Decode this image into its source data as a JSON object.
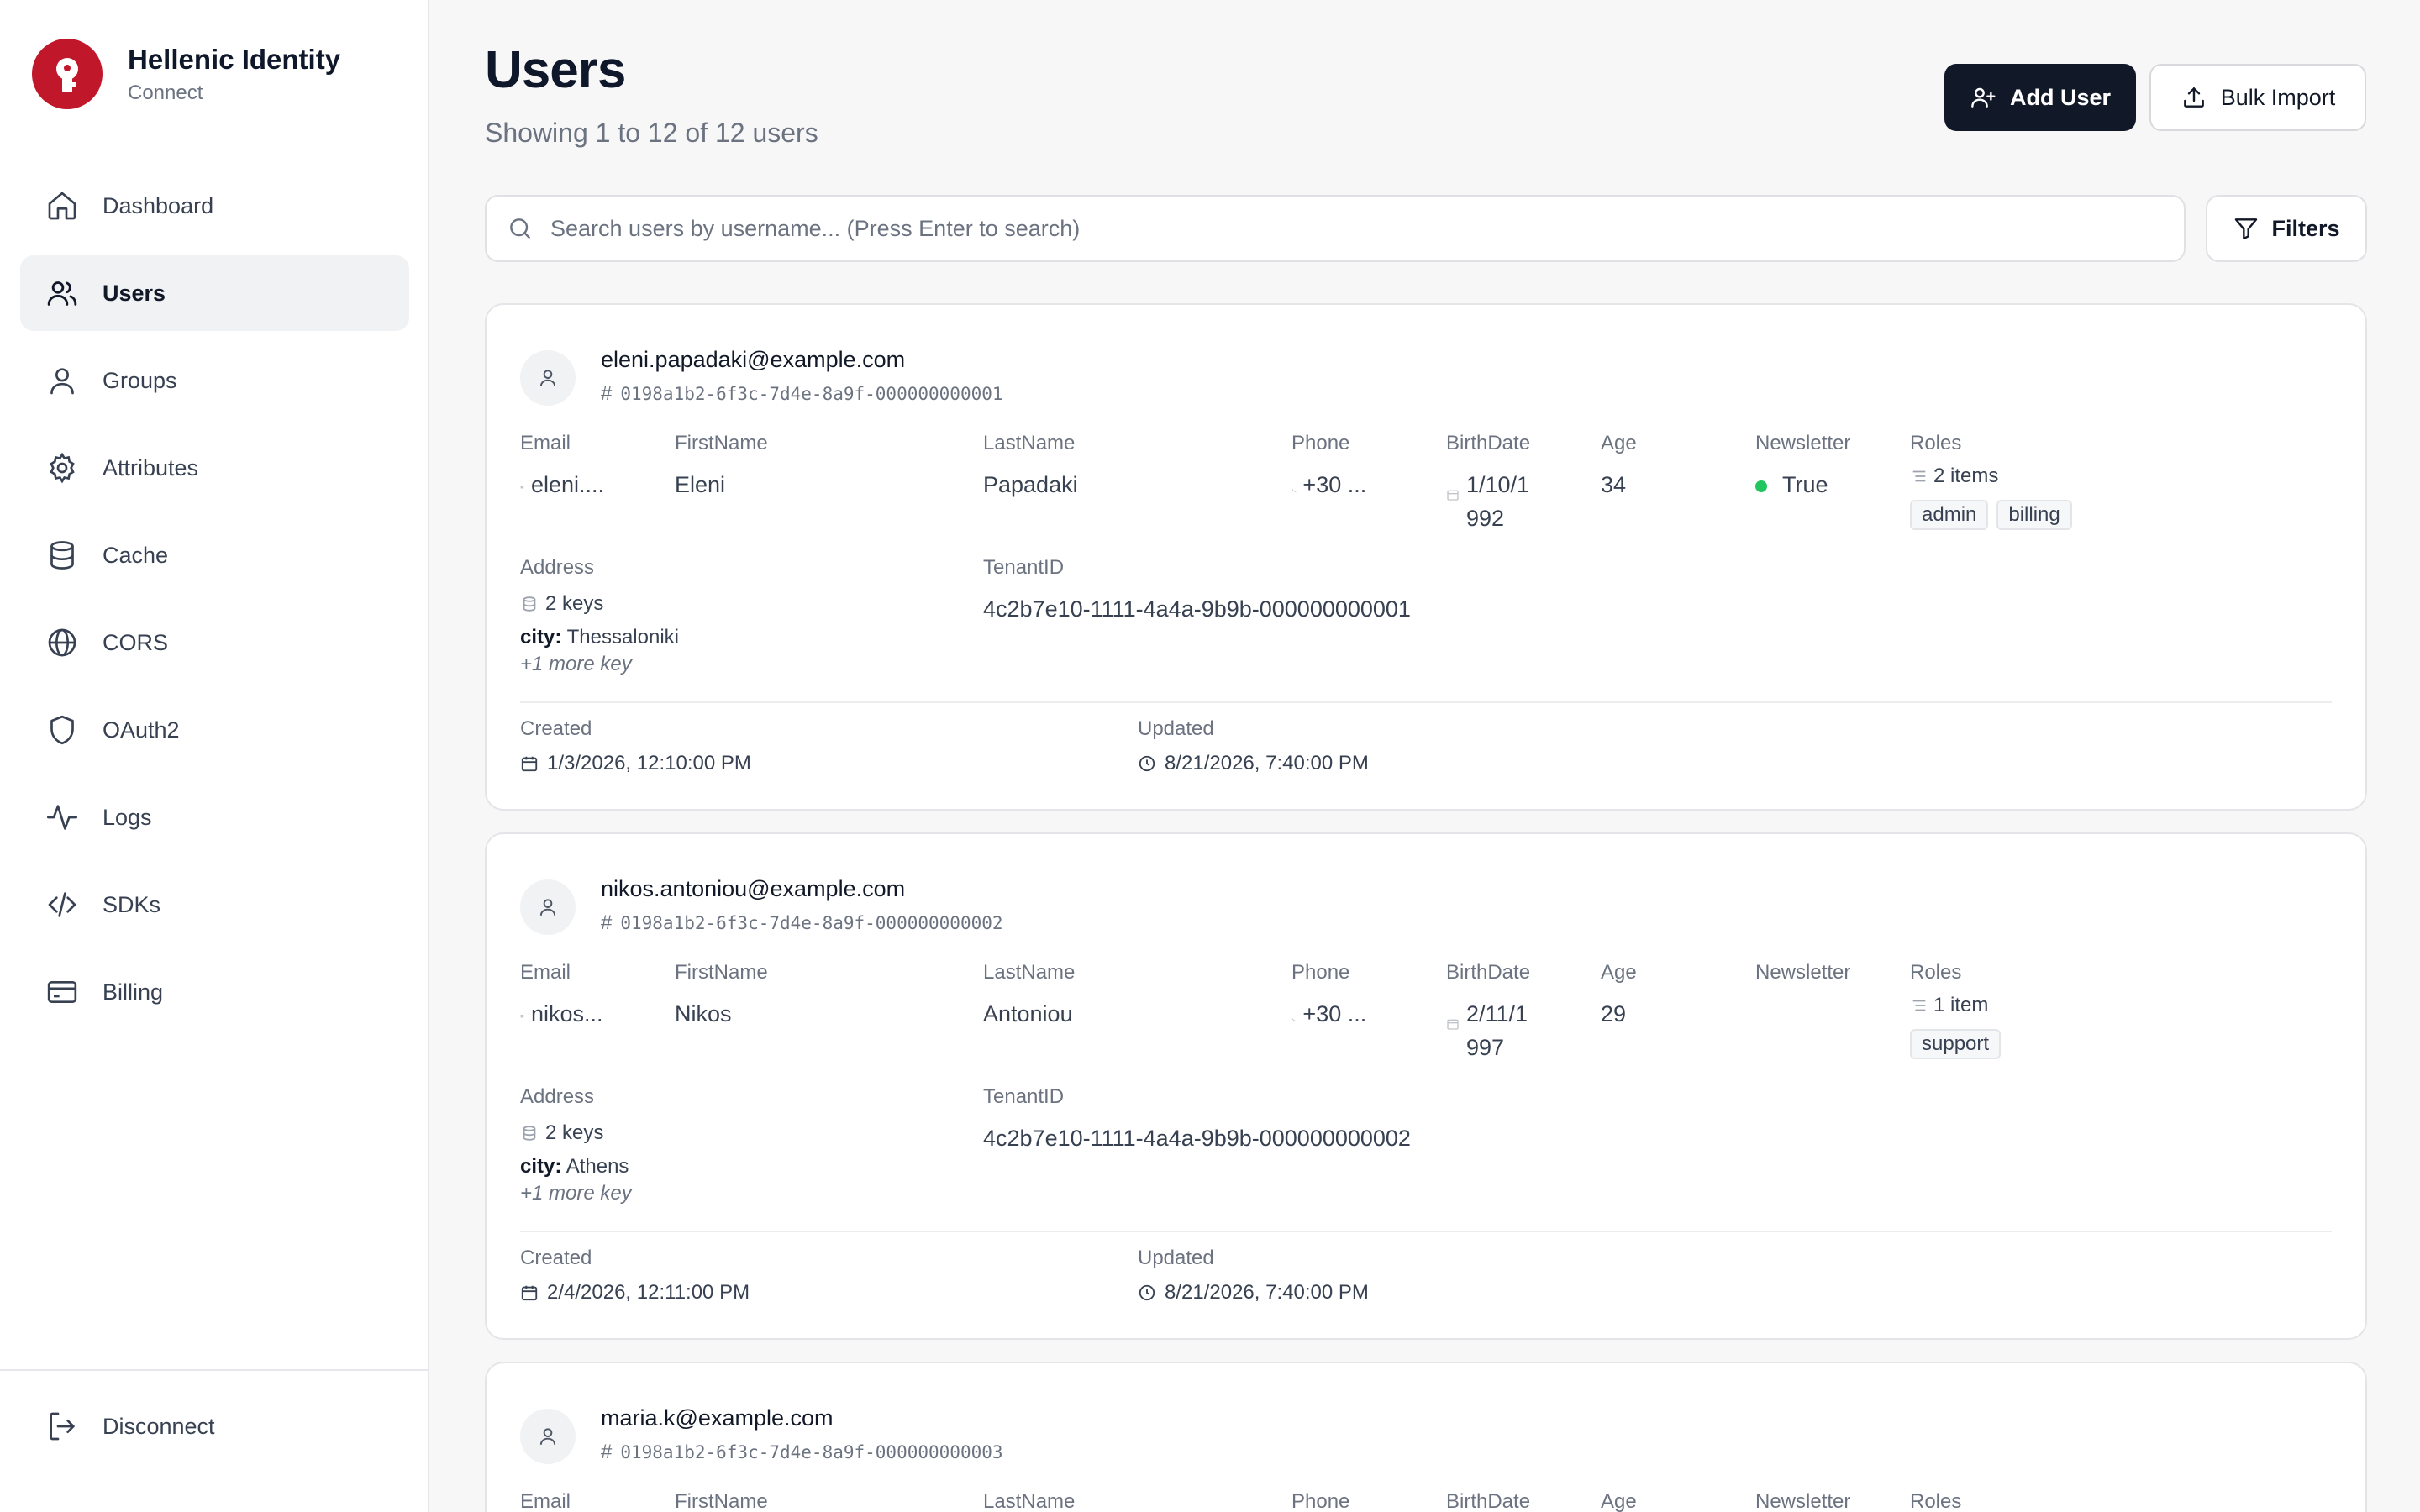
{
  "brand": {
    "title": "Hellenic Identity",
    "subtitle": "Connect",
    "accent": "#c0182a"
  },
  "nav": [
    {
      "label": "Dashboard",
      "icon": "home-icon"
    },
    {
      "label": "Users",
      "icon": "users-icon",
      "active": true
    },
    {
      "label": "Groups",
      "icon": "user-icon"
    },
    {
      "label": "Attributes",
      "icon": "gear-icon"
    },
    {
      "label": "Cache",
      "icon": "database-icon"
    },
    {
      "label": "CORS",
      "icon": "globe-icon"
    },
    {
      "label": "OAuth2",
      "icon": "shield-icon"
    },
    {
      "label": "Logs",
      "icon": "activity-icon"
    },
    {
      "label": "SDKs",
      "icon": "code-icon"
    },
    {
      "label": "Billing",
      "icon": "credit-card-icon"
    }
  ],
  "disconnect_label": "Disconnect",
  "header": {
    "title": "Users",
    "subtitle": "Showing 1 to 12 of 12 users",
    "add_label": "Add User",
    "bulk_label": "Bulk Import"
  },
  "search": {
    "placeholder": "Search users by username... (Press Enter to search)",
    "value": ""
  },
  "filters_label": "Filters",
  "labels": {
    "email": "Email",
    "firstname": "FirstName",
    "lastname": "LastName",
    "phone": "Phone",
    "birthdate": "BirthDate",
    "age": "Age",
    "newsletter": "Newsletter",
    "roles": "Roles",
    "address": "Address",
    "tenant": "TenantID",
    "created": "Created",
    "updated": "Updated"
  },
  "users": [
    {
      "username": "eleni.papadaki@example.com",
      "id": "0198a1b2-6f3c-7d4e-8a9f-000000000001",
      "email": "eleni....",
      "firstname": "Eleni",
      "lastname": "Papadaki",
      "phone": "+30 ...",
      "birthdate_l1": "1/10/1",
      "birthdate_l2": "992",
      "age": "34",
      "newsletter": "True",
      "roles_count": "2 items",
      "roles": [
        "admin",
        "billing"
      ],
      "address_keys": "2 keys",
      "address_key": "city:",
      "address_val": "Thessaloniki",
      "address_more": "+1 more key",
      "tenant": "4c2b7e10-1111-4a4a-9b9b-000000000001",
      "created": "1/3/2026, 12:10:00 PM",
      "updated": "8/21/2026, 7:40:00 PM"
    },
    {
      "username": "nikos.antoniou@example.com",
      "id": "0198a1b2-6f3c-7d4e-8a9f-000000000002",
      "email": "nikos...",
      "firstname": "Nikos",
      "lastname": "Antoniou",
      "phone": "+30 ...",
      "birthdate_l1": "2/11/1",
      "birthdate_l2": "997",
      "age": "29",
      "newsletter": "",
      "roles_count": "1 item",
      "roles": [
        "support"
      ],
      "address_keys": "2 keys",
      "address_key": "city:",
      "address_val": "Athens",
      "address_more": "+1 more key",
      "tenant": "4c2b7e10-1111-4a4a-9b9b-000000000002",
      "created": "2/4/2026, 12:11:00 PM",
      "updated": "8/21/2026, 7:40:00 PM"
    },
    {
      "username": "maria.k@example.com",
      "id": "0198a1b2-6f3c-7d4e-8a9f-000000000003"
    }
  ]
}
